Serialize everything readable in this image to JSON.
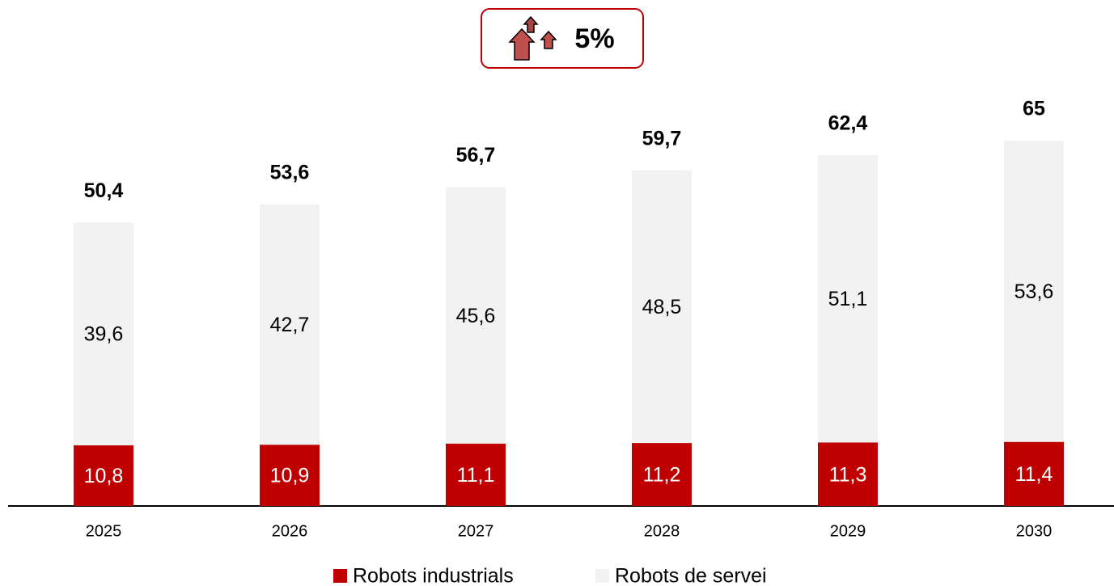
{
  "chart_data": {
    "type": "stacked_bar",
    "annotation": "5%",
    "categories": [
      "2025",
      "2026",
      "2027",
      "2028",
      "2029",
      "2030"
    ],
    "series": [
      {
        "name": "Robots industrials",
        "color": "#c00000",
        "values": [
          10.8,
          10.9,
          11.1,
          11.2,
          11.3,
          11.4
        ],
        "value_labels": [
          "10,8",
          "10,9",
          "11,1",
          "11,2",
          "11,3",
          "11,4"
        ]
      },
      {
        "name": "Robots de servei",
        "color": "#f2f2f2",
        "values": [
          39.6,
          42.7,
          45.6,
          48.5,
          51.1,
          53.6
        ],
        "value_labels": [
          "39,6",
          "42,7",
          "45,6",
          "48,5",
          "51,1",
          "53,6"
        ]
      }
    ],
    "totals": [
      50.4,
      53.6,
      56.7,
      59.7,
      62.4,
      65
    ],
    "total_labels": [
      "50,4",
      "53,6",
      "56,7",
      "59,7",
      "62,4",
      "65"
    ],
    "ylim": [
      0,
      70
    ],
    "legend": "bottom"
  }
}
